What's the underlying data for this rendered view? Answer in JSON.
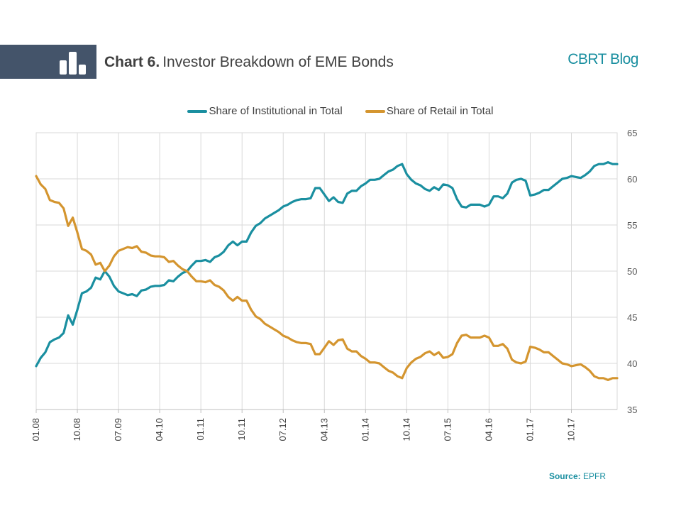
{
  "header": {
    "title_lead": "Chart 6.",
    "title_rest": "Investor Breakdown of EME Bonds",
    "brand": "CBRT Blog"
  },
  "source": {
    "label": "Source:",
    "value": "EPFR"
  },
  "colors": {
    "institutional": "#1a8fa0",
    "retail": "#d4952f",
    "header_band": "#44546a"
  },
  "icons": [
    "bar-chart-icon"
  ],
  "chart_data": {
    "type": "line",
    "title": "",
    "xlabel": "",
    "ylabel": "",
    "ylim": [
      35,
      65
    ],
    "yticks": [
      35,
      40,
      45,
      50,
      55,
      60,
      65
    ],
    "y_axis_side": "right",
    "grid": true,
    "legend_position": "top",
    "start_month": "01.08",
    "xtick_labels": [
      "01.08",
      "10.08",
      "07.09",
      "04.10",
      "01.11",
      "10.11",
      "07.12",
      "04.13",
      "01.14",
      "10.14",
      "07.15",
      "04.16",
      "01.17",
      "10.17"
    ],
    "series": [
      {
        "name": "Share of Institutional in Total",
        "color": "#1a8fa0",
        "values": [
          39.7,
          40.6,
          41.2,
          42.3,
          42.6,
          42.8,
          43.3,
          45.2,
          44.2,
          45.8,
          47.6,
          47.8,
          48.2,
          49.3,
          49.1,
          50.0,
          49.4,
          48.4,
          47.8,
          47.6,
          47.4,
          47.5,
          47.3,
          47.9,
          48.0,
          48.3,
          48.4,
          48.4,
          48.5,
          49.0,
          48.9,
          49.4,
          49.8,
          50.0,
          50.6,
          51.1,
          51.1,
          51.2,
          51.0,
          51.5,
          51.7,
          52.1,
          52.8,
          53.2,
          52.8,
          53.2,
          53.2,
          54.2,
          54.9,
          55.2,
          55.7,
          56.0,
          56.3,
          56.6,
          57.0,
          57.2,
          57.5,
          57.7,
          57.8,
          57.8,
          57.9,
          59.0,
          59.0,
          58.3,
          57.6,
          58.0,
          57.5,
          57.4,
          58.4,
          58.7,
          58.7,
          59.2,
          59.5,
          59.9,
          59.9,
          60.0,
          60.4,
          60.8,
          61.0,
          61.4,
          61.6,
          60.5,
          59.9,
          59.5,
          59.3,
          58.9,
          58.7,
          59.1,
          58.8,
          59.4,
          59.3,
          59.0,
          57.8,
          57.0,
          56.9,
          57.2,
          57.2,
          57.2,
          57.0,
          57.2,
          58.1,
          58.1,
          57.9,
          58.4,
          59.6,
          59.9,
          60.0,
          59.8,
          58.2,
          58.3,
          58.5,
          58.8,
          58.8,
          59.2,
          59.6,
          60.0,
          60.1,
          60.3,
          60.2,
          60.1,
          60.4,
          60.8,
          61.4,
          61.6,
          61.6,
          61.8,
          61.6,
          61.6
        ]
      },
      {
        "name": "Share of Retail in Total",
        "color": "#d4952f",
        "values": [
          60.3,
          59.4,
          58.9,
          57.7,
          57.5,
          57.4,
          56.8,
          54.9,
          55.8,
          54.2,
          52.4,
          52.2,
          51.8,
          50.7,
          50.9,
          50.0,
          50.6,
          51.6,
          52.2,
          52.4,
          52.6,
          52.5,
          52.7,
          52.1,
          52.0,
          51.7,
          51.6,
          51.6,
          51.5,
          51.0,
          51.1,
          50.6,
          50.2,
          50.0,
          49.4,
          48.9,
          48.9,
          48.8,
          49.0,
          48.5,
          48.3,
          47.9,
          47.2,
          46.8,
          47.2,
          46.8,
          46.8,
          45.8,
          45.1,
          44.8,
          44.3,
          44.0,
          43.7,
          43.4,
          43.0,
          42.8,
          42.5,
          42.3,
          42.2,
          42.2,
          42.1,
          41.0,
          41.0,
          41.7,
          42.4,
          42.0,
          42.5,
          42.6,
          41.6,
          41.3,
          41.3,
          40.8,
          40.5,
          40.1,
          40.1,
          40.0,
          39.6,
          39.2,
          39.0,
          38.6,
          38.4,
          39.5,
          40.1,
          40.5,
          40.7,
          41.1,
          41.3,
          40.9,
          41.2,
          40.6,
          40.7,
          41.0,
          42.2,
          43.0,
          43.1,
          42.8,
          42.8,
          42.8,
          43.0,
          42.8,
          41.9,
          41.9,
          42.1,
          41.6,
          40.4,
          40.1,
          40.0,
          40.2,
          41.8,
          41.7,
          41.5,
          41.2,
          41.2,
          40.8,
          40.4,
          40.0,
          39.9,
          39.7,
          39.8,
          39.9,
          39.6,
          39.2,
          38.6,
          38.4,
          38.4,
          38.2,
          38.4,
          38.4
        ]
      }
    ]
  }
}
